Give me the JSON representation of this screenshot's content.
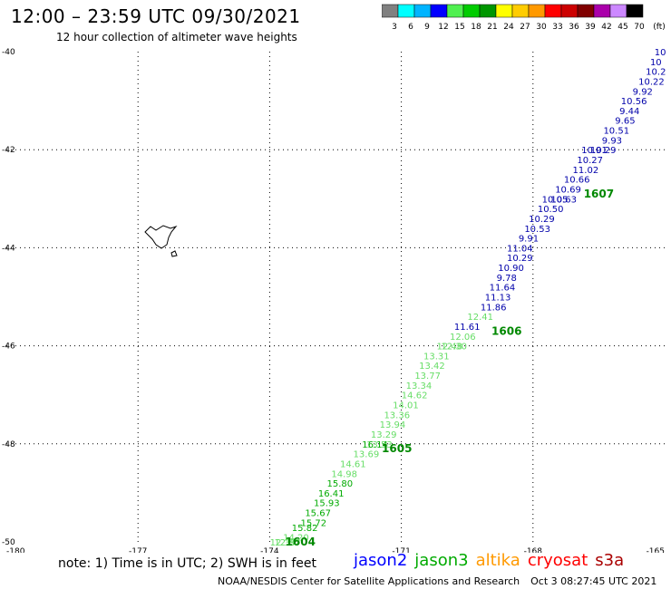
{
  "header": {
    "title": "12:00 – 23:59 UTC 09/30/2021",
    "subtitle": "12 hour collection of altimeter wave heights"
  },
  "legend": {
    "unit": "(ft)",
    "items": [
      {
        "label": "3",
        "color": "#808080"
      },
      {
        "label": "6",
        "color": "#00ffff"
      },
      {
        "label": "9",
        "color": "#00b4ff"
      },
      {
        "label": "12",
        "color": "#0000ff"
      },
      {
        "label": "15",
        "color": "#50f050"
      },
      {
        "label": "18",
        "color": "#00cc00"
      },
      {
        "label": "21",
        "color": "#009600"
      },
      {
        "label": "24",
        "color": "#ffff00"
      },
      {
        "label": "27",
        "color": "#ffcc00"
      },
      {
        "label": "30",
        "color": "#ff9900"
      },
      {
        "label": "33",
        "color": "#ff0000"
      },
      {
        "label": "36",
        "color": "#cc0000"
      },
      {
        "label": "39",
        "color": "#800000"
      },
      {
        "label": "42",
        "color": "#aa00aa"
      },
      {
        "label": "45",
        "color": "#cc88ff"
      },
      {
        "label": "70",
        "color": "#000000"
      }
    ]
  },
  "map": {
    "lon_range": [
      -180,
      -165
    ],
    "lat_range": [
      -50,
      -40
    ],
    "lon_ticks": [
      "-180",
      "-177",
      "-174",
      "-171",
      "-168",
      "-165"
    ],
    "lat_ticks": [
      "-40",
      "-42",
      "-44",
      "-46",
      "-48",
      "-50"
    ]
  },
  "track": {
    "track_labels": [
      {
        "text": "1607",
        "lon": -166.5,
        "lat": -42.9
      },
      {
        "text": "1606",
        "lon": -168.6,
        "lat": -45.7
      },
      {
        "text": "1605",
        "lon": -171.1,
        "lat": -48.1
      },
      {
        "text": "1604",
        "lon": -173.3,
        "lat": -50.0
      }
    ],
    "points": [
      {
        "value": "10",
        "lon": -165.1,
        "lat": -40.0,
        "color": "#0000aa"
      },
      {
        "value": "10",
        "lon": -165.2,
        "lat": -40.2,
        "color": "#0000aa"
      },
      {
        "value": "10.2",
        "lon": -165.2,
        "lat": -40.4,
        "color": "#0000aa"
      },
      {
        "value": "10.22",
        "lon": -165.3,
        "lat": -40.6,
        "color": "#0000aa"
      },
      {
        "value": "9.92",
        "lon": -165.5,
        "lat": -40.8,
        "color": "#0000aa"
      },
      {
        "value": "10.56",
        "lon": -165.7,
        "lat": -41.0,
        "color": "#0000aa"
      },
      {
        "value": "9.44",
        "lon": -165.8,
        "lat": -41.2,
        "color": "#0000aa"
      },
      {
        "value": "9.65",
        "lon": -165.9,
        "lat": -41.4,
        "color": "#0000aa"
      },
      {
        "value": "10.51",
        "lon": -166.1,
        "lat": -41.6,
        "color": "#0000aa"
      },
      {
        "value": "9.93",
        "lon": -166.2,
        "lat": -41.8,
        "color": "#0000aa"
      },
      {
        "value": "10.29",
        "lon": -166.4,
        "lat": -42.0,
        "color": "#0000aa"
      },
      {
        "value": "10.91",
        "lon": -166.6,
        "lat": -42.0,
        "color": "#0000aa"
      },
      {
        "value": "10.27",
        "lon": -166.7,
        "lat": -42.2,
        "color": "#0000aa"
      },
      {
        "value": "11.02",
        "lon": -166.8,
        "lat": -42.4,
        "color": "#0000aa"
      },
      {
        "value": "10.66",
        "lon": -167.0,
        "lat": -42.6,
        "color": "#0000aa"
      },
      {
        "value": "10.69",
        "lon": -167.2,
        "lat": -42.8,
        "color": "#0000aa"
      },
      {
        "value": "10.63",
        "lon": -167.3,
        "lat": -43.0,
        "color": "#0000aa"
      },
      {
        "value": "10.05",
        "lon": -167.5,
        "lat": -43.0,
        "color": "#0000aa"
      },
      {
        "value": "10.50",
        "lon": -167.6,
        "lat": -43.2,
        "color": "#0000aa"
      },
      {
        "value": "10.29",
        "lon": -167.8,
        "lat": -43.4,
        "color": "#0000aa"
      },
      {
        "value": "10.53",
        "lon": -167.9,
        "lat": -43.6,
        "color": "#0000aa"
      },
      {
        "value": "9.91",
        "lon": -168.1,
        "lat": -43.8,
        "color": "#0000aa"
      },
      {
        "value": "11.04",
        "lon": -168.3,
        "lat": -44.0,
        "color": "#0000aa"
      },
      {
        "value": "10.29",
        "lon": -168.3,
        "lat": -44.2,
        "color": "#0000aa"
      },
      {
        "value": "10.90",
        "lon": -168.5,
        "lat": -44.4,
        "color": "#0000aa"
      },
      {
        "value": "9.78",
        "lon": -168.6,
        "lat": -44.6,
        "color": "#0000aa"
      },
      {
        "value": "11.64",
        "lon": -168.7,
        "lat": -44.8,
        "color": "#0000aa"
      },
      {
        "value": "11.13",
        "lon": -168.8,
        "lat": -45.0,
        "color": "#0000aa"
      },
      {
        "value": "11.86",
        "lon": -168.9,
        "lat": -45.2,
        "color": "#0000aa"
      },
      {
        "value": "12.41",
        "lon": -169.2,
        "lat": -45.4,
        "color": "#66dd66"
      },
      {
        "value": "11.61",
        "lon": -169.5,
        "lat": -45.6,
        "color": "#0000aa"
      },
      {
        "value": "12.06",
        "lon": -169.6,
        "lat": -45.8,
        "color": "#66dd66"
      },
      {
        "value": "12.30",
        "lon": -169.8,
        "lat": -46.0,
        "color": "#66dd66"
      },
      {
        "value": "12.48",
        "lon": -169.9,
        "lat": -46.0,
        "color": "#66dd66"
      },
      {
        "value": "13.31",
        "lon": -170.2,
        "lat": -46.2,
        "color": "#66dd66"
      },
      {
        "value": "13.42",
        "lon": -170.3,
        "lat": -46.4,
        "color": "#66dd66"
      },
      {
        "value": "13.77",
        "lon": -170.4,
        "lat": -46.6,
        "color": "#66dd66"
      },
      {
        "value": "13.34",
        "lon": -170.6,
        "lat": -46.8,
        "color": "#66dd66"
      },
      {
        "value": "14.62",
        "lon": -170.7,
        "lat": -47.0,
        "color": "#66dd66"
      },
      {
        "value": "14.01",
        "lon": -170.9,
        "lat": -47.2,
        "color": "#66dd66"
      },
      {
        "value": "13.36",
        "lon": -171.1,
        "lat": -47.4,
        "color": "#66dd66"
      },
      {
        "value": "13.94",
        "lon": -171.2,
        "lat": -47.6,
        "color": "#66dd66"
      },
      {
        "value": "13.29",
        "lon": -171.4,
        "lat": -47.8,
        "color": "#66dd66"
      },
      {
        "value": "13.53",
        "lon": -171.5,
        "lat": -48.0,
        "color": "#66dd66"
      },
      {
        "value": "16.14",
        "lon": -171.6,
        "lat": -48.0,
        "color": "#00aa00"
      },
      {
        "value": "13.69",
        "lon": -171.8,
        "lat": -48.2,
        "color": "#66dd66"
      },
      {
        "value": "14.61",
        "lon": -172.1,
        "lat": -48.4,
        "color": "#66dd66"
      },
      {
        "value": "14.98",
        "lon": -172.3,
        "lat": -48.6,
        "color": "#66dd66"
      },
      {
        "value": "15.80",
        "lon": -172.4,
        "lat": -48.8,
        "color": "#00aa00"
      },
      {
        "value": "16.41",
        "lon": -172.6,
        "lat": -49.0,
        "color": "#00aa00"
      },
      {
        "value": "15.93",
        "lon": -172.7,
        "lat": -49.2,
        "color": "#00aa00"
      },
      {
        "value": "15.67",
        "lon": -172.9,
        "lat": -49.4,
        "color": "#00aa00"
      },
      {
        "value": "15.72",
        "lon": -173.0,
        "lat": -49.6,
        "color": "#00aa00"
      },
      {
        "value": "15.82",
        "lon": -173.2,
        "lat": -49.7,
        "color": "#00aa00"
      },
      {
        "value": "14.20",
        "lon": -173.4,
        "lat": -49.9,
        "color": "#66dd66"
      },
      {
        "value": "12.87",
        "lon": -173.6,
        "lat": -50.0,
        "color": "#66dd66"
      },
      {
        "value": "12.39",
        "lon": -173.7,
        "lat": -50.0,
        "color": "#66dd66"
      }
    ]
  },
  "footer": {
    "note": "note: 1) Time is in UTC; 2) SWH is in feet",
    "satellites": [
      {
        "name": "jason2",
        "color": "#0000ff"
      },
      {
        "name": "jason3",
        "color": "#00aa00"
      },
      {
        "name": "altika",
        "color": "#ff9900"
      },
      {
        "name": "cryosat",
        "color": "#ff0000"
      },
      {
        "name": "s3a",
        "color": "#aa0000"
      }
    ],
    "credit": "NOAA/NESDIS Center for Satellite Applications and Research",
    "timestamp": "Oct  3 08:27:45 UTC 2021"
  }
}
